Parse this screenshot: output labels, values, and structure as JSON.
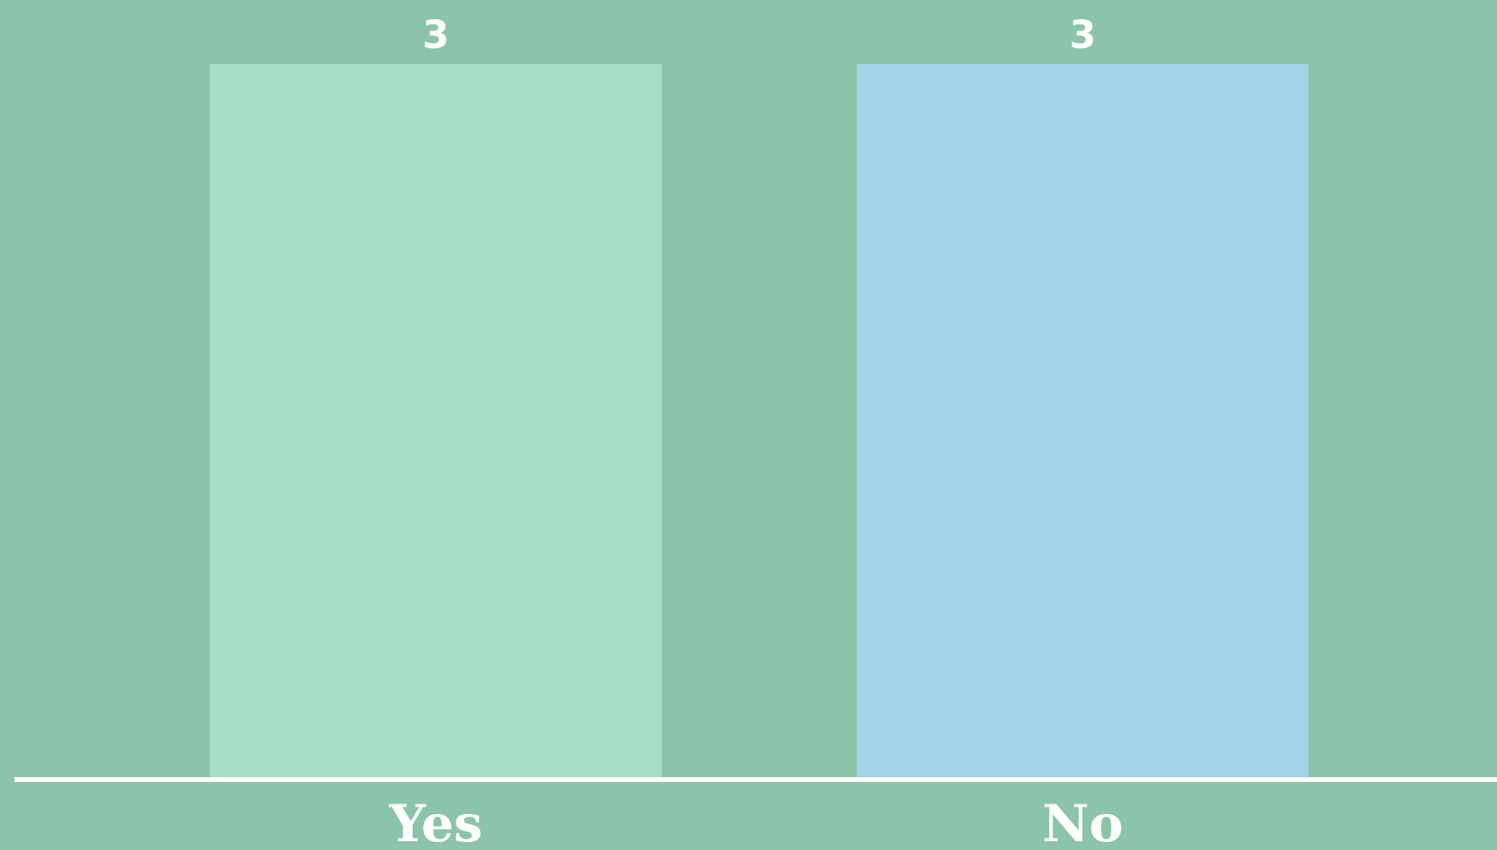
{
  "chart_data": {
    "type": "bar",
    "title": "",
    "xlabel": "",
    "ylabel": "",
    "categories": [
      "Yes",
      "No"
    ],
    "values": [
      3,
      3
    ],
    "data_labels": [
      "3",
      "3"
    ],
    "ylim": [
      0,
      3
    ],
    "grid": false,
    "legend": "none",
    "colors": {
      "background": "#8bc4aa",
      "axis": "#ffffff",
      "bars": [
        "#a6dec6",
        "#a0d4e6"
      ],
      "text": "#ffffff"
    }
  }
}
